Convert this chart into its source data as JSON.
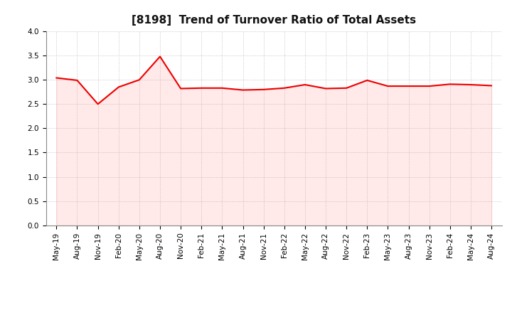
{
  "title": "[8198]  Trend of Turnover Ratio of Total Assets",
  "x_labels": [
    "May-19",
    "Aug-19",
    "Nov-19",
    "Feb-20",
    "May-20",
    "Aug-20",
    "Nov-20",
    "Feb-21",
    "May-21",
    "Aug-21",
    "Nov-21",
    "Feb-22",
    "May-22",
    "Aug-22",
    "Nov-22",
    "Feb-23",
    "May-23",
    "Aug-23",
    "Nov-23",
    "Feb-24",
    "May-24",
    "Aug-24"
  ],
  "values": [
    3.04,
    2.99,
    2.5,
    2.85,
    3.0,
    3.48,
    2.82,
    2.83,
    2.83,
    2.79,
    2.8,
    2.83,
    2.9,
    2.82,
    2.83,
    2.99,
    2.87,
    2.87,
    2.87,
    2.91,
    2.9,
    2.88
  ],
  "line_color": "#EE0000",
  "fill_color": "#FF8888",
  "line_width": 1.5,
  "ylim": [
    0.0,
    4.0
  ],
  "yticks": [
    0.0,
    0.5,
    1.0,
    1.5,
    2.0,
    2.5,
    3.0,
    3.5,
    4.0
  ],
  "grid_color": "#bbbbbb",
  "background_color": "#ffffff",
  "title_fontsize": 11,
  "tick_fontsize": 7.5
}
